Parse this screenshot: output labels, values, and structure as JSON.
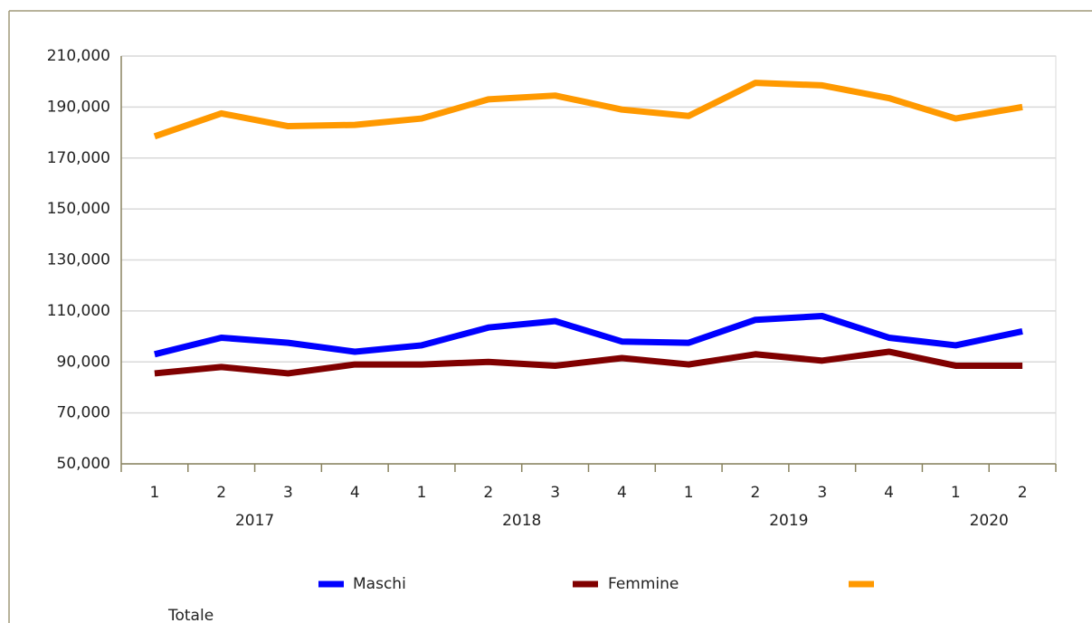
{
  "chart_data": {
    "type": "line",
    "categories": [
      "1",
      "2",
      "3",
      "4",
      "1",
      "2",
      "3",
      "4",
      "1",
      "2",
      "3",
      "4",
      "1",
      "2"
    ],
    "years": [
      "2017",
      "2018",
      "2019",
      "2020"
    ],
    "series": [
      {
        "name": "Maschi",
        "color": "#0000ff",
        "values": [
          93000,
          99500,
          97500,
          94000,
          96500,
          103500,
          106000,
          98000,
          97500,
          106500,
          108000,
          99500,
          96500,
          102000
        ]
      },
      {
        "name": "Femmine",
        "color": "#800000",
        "values": [
          85500,
          88000,
          85500,
          89000,
          89000,
          90000,
          88500,
          91500,
          89000,
          93000,
          90500,
          94000,
          88500,
          88500
        ]
      },
      {
        "name": "Totale",
        "color": "#ff9900",
        "values": [
          178500,
          187500,
          182500,
          183000,
          185500,
          193000,
          194500,
          189000,
          186500,
          199500,
          198500,
          193500,
          185500,
          190000
        ]
      }
    ],
    "ylim": [
      50000,
      210000
    ],
    "yticks": [
      {
        "value": 50000,
        "label": "50,000"
      },
      {
        "value": 70000,
        "label": "70,000"
      },
      {
        "value": 90000,
        "label": "90,000"
      },
      {
        "value": 110000,
        "label": "110,000"
      },
      {
        "value": 130000,
        "label": "130,000"
      },
      {
        "value": 150000,
        "label": "150,000"
      },
      {
        "value": 170000,
        "label": "170,000"
      },
      {
        "value": 190000,
        "label": "190,000"
      },
      {
        "value": 210000,
        "label": "210,000"
      }
    ],
    "grid": true
  }
}
